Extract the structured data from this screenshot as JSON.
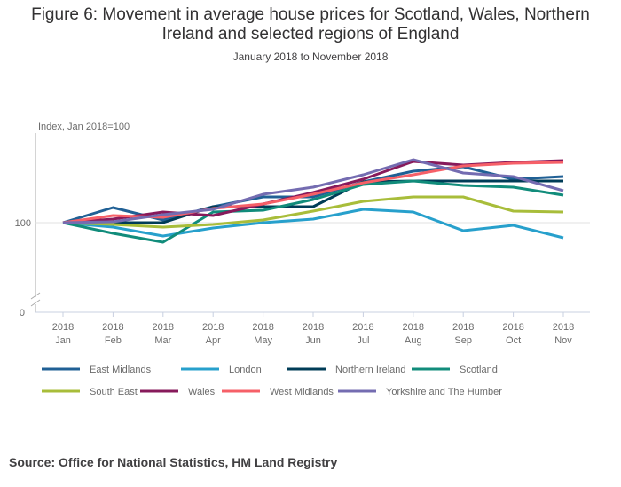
{
  "title_line1": "Figure 6: Movement in average house prices for Scotland, Wales, Northern",
  "title_line2": "Ireland and selected regions of England",
  "subtitle": "January 2018 to November 2018",
  "source": "Source: Office for National Statistics, HM Land Registry",
  "chart_data": {
    "type": "line",
    "title": "Figure 6: Movement in average house prices for Scotland, Wales, Northern Ireland and selected regions of England",
    "subtitle": "January 2018 to November 2018",
    "ylabel": "Index, Jan 2018=100",
    "xlabel": "",
    "y_ticks": [
      "100",
      "0"
    ],
    "y_axis_break": true,
    "grid": "horizontal line at 100",
    "legend_position": "bottom",
    "categories": [
      {
        "year": "2018",
        "month": "Jan"
      },
      {
        "year": "2018",
        "month": "Feb"
      },
      {
        "year": "2018",
        "month": "Mar"
      },
      {
        "year": "2018",
        "month": "Apr"
      },
      {
        "year": "2018",
        "month": "May"
      },
      {
        "year": "2018",
        "month": "Jun"
      },
      {
        "year": "2018",
        "month": "Jul"
      },
      {
        "year": "2018",
        "month": "Aug"
      },
      {
        "year": "2018",
        "month": "Sep"
      },
      {
        "year": "2018",
        "month": "Oct"
      },
      {
        "year": "2018",
        "month": "Nov"
      }
    ],
    "series": [
      {
        "name": "East Midlands",
        "color": "#206095",
        "values": [
          100,
          101.7,
          100.3,
          101.8,
          102.9,
          102.9,
          104.6,
          105.8,
          106.3,
          104.9,
          105.2
        ]
      },
      {
        "name": "London",
        "color": "#27a0cc",
        "values": [
          100,
          99.5,
          98.5,
          99.4,
          100,
          100.4,
          101.5,
          101.2,
          99.1,
          99.7,
          98.3
        ]
      },
      {
        "name": "Northern Ireland",
        "color": "#003c57",
        "values": [
          100,
          100,
          100,
          101.8,
          101.8,
          101.8,
          104.6,
          104.7,
          104.7,
          104.7,
          104.7
        ]
      },
      {
        "name": "Scotland",
        "color": "#118c7b",
        "values": [
          100,
          98.8,
          97.8,
          101.2,
          101.4,
          102.6,
          104.3,
          104.7,
          104.2,
          104.0,
          103.1
        ]
      },
      {
        "name": "South East",
        "color": "#a8bd3a",
        "values": [
          100,
          99.8,
          99.5,
          99.8,
          100.3,
          101.3,
          102.4,
          102.9,
          102.9,
          101.3,
          101.2
        ]
      },
      {
        "name": "Wales",
        "color": "#871a5b",
        "values": [
          100,
          100.4,
          101.2,
          100.8,
          102.1,
          103.4,
          104.9,
          106.9,
          106.5,
          106.8,
          107.0
        ]
      },
      {
        "name": "West Midlands",
        "color": "#f66068",
        "values": [
          100,
          100.8,
          100.6,
          101.6,
          102.1,
          103.2,
          104.5,
          105.4,
          106.4,
          106.7,
          106.8
        ]
      },
      {
        "name": "Yorkshire and The Humber",
        "color": "#746cb1",
        "values": [
          100,
          100.1,
          100.9,
          101.5,
          103.2,
          104.0,
          105.4,
          107.1,
          105.6,
          105.2,
          103.6
        ]
      }
    ]
  }
}
